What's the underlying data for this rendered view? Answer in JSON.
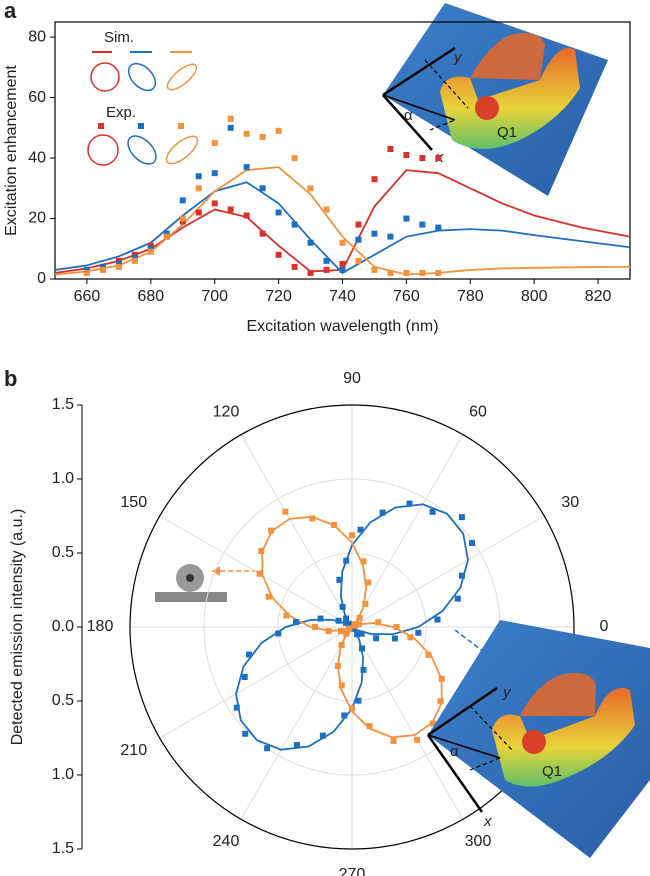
{
  "chart_data": [
    {
      "type": "line",
      "panel_label": "a",
      "x_label": "Excitation wavelength (nm)",
      "y_label": "Excitation enhancement",
      "xlim": [
        650,
        830
      ],
      "ylim": [
        0,
        85
      ],
      "xticks": [
        660,
        680,
        700,
        720,
        740,
        760,
        780,
        800,
        820
      ],
      "yticks": [
        0,
        20,
        40,
        60,
        80
      ],
      "legend_titles": [
        "Sim.",
        "Exp."
      ],
      "annotations": [
        "y",
        "x",
        "α",
        "Q1"
      ],
      "series": [
        {
          "kind": "line",
          "color": "#d8312b",
          "x": [
            650,
            660,
            670,
            680,
            690,
            700,
            710,
            720,
            730,
            740,
            750,
            760,
            770,
            780,
            790,
            800,
            815,
            830
          ],
          "values": [
            2,
            3.5,
            6,
            10,
            17,
            23,
            20.5,
            11,
            2.5,
            3,
            24,
            36,
            35,
            30,
            25,
            21,
            17,
            14
          ]
        },
        {
          "kind": "line",
          "color": "#1f6fc0",
          "x": [
            650,
            660,
            670,
            680,
            690,
            700,
            710,
            720,
            730,
            740,
            750,
            760,
            770,
            780,
            790,
            800,
            815,
            830
          ],
          "values": [
            3,
            4.5,
            7.5,
            12,
            21,
            29,
            32,
            25,
            13,
            2,
            8,
            14,
            16,
            16.5,
            16,
            14.5,
            12.5,
            10.5
          ]
        },
        {
          "kind": "line",
          "color": "#f2923f",
          "x": [
            650,
            660,
            670,
            680,
            690,
            700,
            710,
            720,
            730,
            740,
            750,
            760,
            770,
            780,
            790,
            800,
            815,
            830
          ],
          "values": [
            1.5,
            2.5,
            4.5,
            9,
            18,
            29,
            36,
            37,
            28,
            14,
            4,
            1.5,
            2,
            3,
            3.5,
            3.7,
            3.9,
            4
          ]
        },
        {
          "kind": "scatter",
          "color": "#d8312b",
          "x": [
            660,
            665,
            670,
            675,
            680,
            685,
            690,
            695,
            700,
            705,
            710,
            715,
            720,
            725,
            730,
            735,
            740,
            745,
            750,
            755,
            760,
            765,
            770
          ],
          "values": [
            3,
            4,
            6,
            8,
            11,
            14,
            19,
            22,
            25,
            23,
            21,
            15,
            8,
            4,
            2,
            3,
            5,
            18,
            33,
            43,
            41,
            40,
            40
          ]
        },
        {
          "kind": "scatter",
          "color": "#1f6fc0",
          "x": [
            660,
            665,
            670,
            675,
            680,
            685,
            690,
            695,
            700,
            705,
            710,
            715,
            720,
            725,
            730,
            735,
            740,
            745,
            750,
            755,
            760,
            765,
            770
          ],
          "values": [
            3,
            4,
            5,
            7,
            10,
            15,
            26,
            34,
            35,
            50,
            37,
            30,
            22,
            18,
            12,
            6,
            3,
            13,
            15,
            14,
            20,
            18,
            17
          ]
        },
        {
          "kind": "scatter",
          "color": "#f2923f",
          "x": [
            660,
            665,
            670,
            675,
            680,
            685,
            690,
            695,
            700,
            705,
            710,
            715,
            720,
            725,
            730,
            735,
            740,
            745,
            750,
            755,
            760,
            765,
            770
          ],
          "values": [
            2,
            3,
            4,
            6,
            9,
            14,
            20,
            30,
            45,
            53,
            48,
            47,
            49,
            40,
            30,
            23,
            12,
            6,
            3,
            2,
            2,
            2,
            2
          ]
        }
      ]
    },
    {
      "type": "polar",
      "panel_label": "b",
      "r_label": "Detected emission intensity (a.u.)",
      "rlim": [
        0,
        1.5
      ],
      "rticks": [
        {
          "value": 0,
          "label": "0.0"
        },
        {
          "value": 0.5,
          "label": "0.5"
        },
        {
          "value": 1,
          "label": "1.0"
        },
        {
          "value": 1.5,
          "label": "1.5"
        }
      ],
      "thetaticks": [
        0,
        30,
        60,
        90,
        120,
        150,
        180,
        210,
        240,
        270,
        300
      ],
      "annotations": [
        "Q1",
        "y",
        "x",
        "α",
        "Q1"
      ],
      "series": [
        {
          "kind": "line",
          "color": "#1f6fc0",
          "theta": [
            0,
            10,
            20,
            30,
            40,
            50,
            60,
            70,
            80,
            90,
            100,
            110,
            120,
            130,
            140,
            150,
            160,
            170,
            180,
            190,
            200,
            210,
            220,
            230,
            240,
            250,
            260,
            270,
            280,
            290,
            300,
            310,
            320,
            330,
            340,
            350,
            360
          ],
          "values": [
            0.448,
            0.621,
            0.78,
            0.905,
            0.981,
            0.999,
            0.957,
            0.859,
            0.719,
            0.552,
            0.379,
            0.22,
            0.095,
            0.019,
            0.001,
            0.043,
            0.14,
            0.281,
            0.448,
            0.621,
            0.78,
            0.905,
            0.981,
            0.999,
            0.957,
            0.859,
            0.719,
            0.552,
            0.379,
            0.22,
            0.095,
            0.019,
            0.001,
            0.043,
            0.14,
            0.281,
            0.448
          ]
        },
        {
          "kind": "line",
          "color": "#f2923f",
          "theta": [
            0,
            10,
            20,
            30,
            40,
            50,
            60,
            70,
            80,
            90,
            100,
            110,
            120,
            130,
            140,
            150,
            160,
            170,
            180,
            190,
            200,
            210,
            220,
            230,
            240,
            250,
            260,
            270,
            280,
            290,
            300,
            310,
            320,
            330,
            340,
            350,
            360
          ],
          "values": [
            0.28,
            0.152,
            0.057,
            0.006,
            0.006,
            0.057,
            0.152,
            0.28,
            0.425,
            0.57,
            0.698,
            0.793,
            0.844,
            0.844,
            0.793,
            0.698,
            0.57,
            0.425,
            0.28,
            0.152,
            0.057,
            0.006,
            0.006,
            0.057,
            0.152,
            0.28,
            0.425,
            0.57,
            0.698,
            0.793,
            0.844,
            0.844,
            0.793,
            0.698,
            0.57,
            0.425,
            0.28
          ]
        },
        {
          "kind": "scatter",
          "color": "#1f6fc0",
          "theta": [
            5,
            15,
            25,
            35,
            45,
            55,
            65,
            75,
            85,
            95,
            105,
            115,
            125,
            135,
            145,
            155,
            165,
            175,
            185,
            195,
            205,
            215,
            225,
            235,
            245,
            255,
            265,
            275,
            285,
            295,
            305,
            315,
            325,
            335,
            345,
            355
          ],
          "values": [
            0.58,
            0.74,
            0.82,
            0.99,
            1.05,
            0.95,
            0.92,
            0.8,
            0.66,
            0.45,
            0.33,
            0.15,
            0.07,
            0.03,
            0.05,
            0.1,
            0.22,
            0.38,
            0.5,
            0.72,
            0.8,
            0.95,
            1.02,
            1,
            0.88,
            0.76,
            0.6,
            0.5,
            0.3,
            0.16,
            0.06,
            0.02,
            0.08,
            0.18,
            0.3,
            0.45
          ]
        },
        {
          "kind": "scatter",
          "color": "#f2923f",
          "theta": [
            0,
            10,
            20,
            30,
            40,
            50,
            60,
            70,
            80,
            90,
            100,
            110,
            120,
            130,
            140,
            150,
            160,
            170,
            180,
            190,
            200,
            210,
            220,
            230,
            240,
            250,
            260,
            270,
            280,
            290,
            300,
            310,
            320,
            330,
            340,
            350
          ],
          "values": [
            0.3,
            0.18,
            0.05,
            0.02,
            0.03,
            0.08,
            0.18,
            0.32,
            0.45,
            0.62,
            0.7,
            0.78,
            0.9,
            0.85,
            0.8,
            0.72,
            0.6,
            0.45,
            0.25,
            0.16,
            0.08,
            0.02,
            0.04,
            0.06,
            0.14,
            0.28,
            0.4,
            0.55,
            0.68,
            0.82,
            0.88,
            0.85,
            0.78,
            0.7,
            0.55,
            0.4
          ]
        }
      ]
    }
  ]
}
